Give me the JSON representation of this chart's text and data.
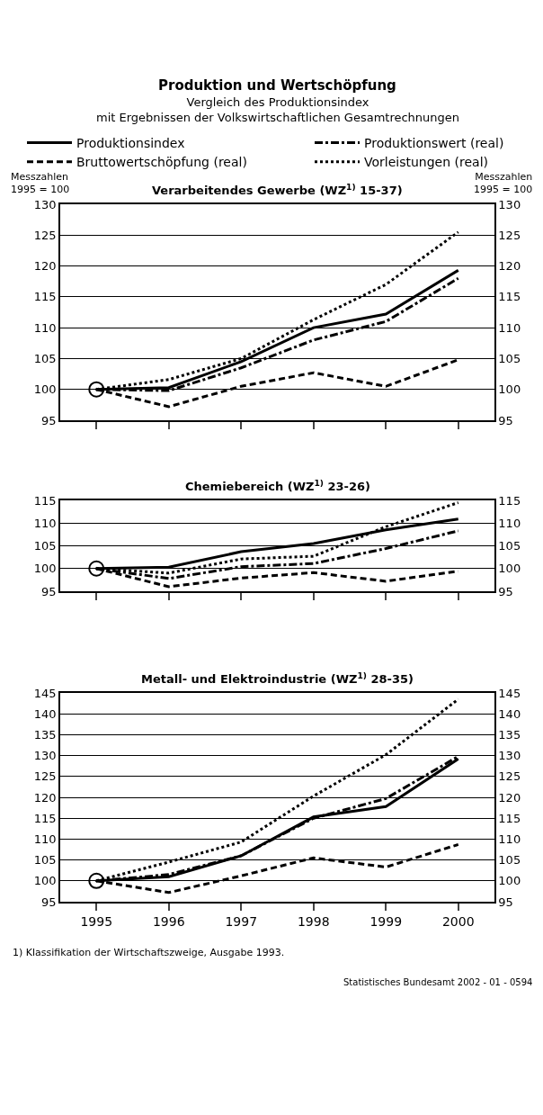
{
  "chart_data": [
    {
      "type": "other",
      "title": "Produktion und Wertschöpfung",
      "subtitle": "Vergleich des Produktionsindex\nmit Ergebnissen der Volkswirtschaftlichen Gesamtrechnungen"
    },
    {
      "type": "line",
      "title": "Verarbeitendes Gewerbe (WZ$^{1)}$ 15-37)",
      "ylabel": "Messzahlen\n1995 = 100",
      "y2label": "Messzahlen\n1995 = 100",
      "categories": [
        null,
        null,
        null,
        null,
        null,
        null
      ],
      "ylim": [
        95,
        130
      ],
      "yticks": [
        95,
        100,
        105,
        110,
        115,
        120,
        125,
        130
      ],
      "y2lim": [
        95,
        130
      ],
      "y2ticks": [
        95,
        100,
        105,
        110,
        115,
        120,
        125,
        130
      ],
      "grid": "y",
      "legend": "top",
      "series": [
        {
          "name": "Produktionsindex",
          "color": "#000000",
          "line_style": "solid",
          "values": [
            100,
            100.3,
            104.5,
            110,
            112.2,
            119.3
          ]
        },
        {
          "name": "Produktionswert (real)",
          "color": "#000000",
          "line_style": "dashdot",
          "values": [
            100,
            99.8,
            103.5,
            108,
            111,
            118
          ]
        },
        {
          "name": "Bruttowertschöpfung (real)",
          "color": "#000000",
          "line_style": "dashed",
          "values": [
            100,
            97.2,
            100.5,
            102.7,
            100.5,
            104.8
          ]
        },
        {
          "name": "Vorleistungen (real)",
          "color": "#000000",
          "line_style": "dotted",
          "values": [
            100,
            101.6,
            105,
            111.3,
            117,
            125.5
          ]
        },
        {
          "type": "scatter",
          "color": "#000000",
          "marker": "circle",
          "values": [
            100,
            null,
            null,
            null,
            null,
            null
          ]
        }
      ]
    },
    {
      "type": "line",
      "title": "Chemiebereich (WZ$^{1)}$ 23-26)",
      "categories": [
        null,
        null,
        null,
        null,
        null,
        null
      ],
      "ylim": [
        95,
        115
      ],
      "yticks": [
        95,
        100,
        105,
        110,
        115
      ],
      "y2lim": [
        95,
        115
      ],
      "y2ticks": [
        95,
        100,
        105,
        110,
        115
      ],
      "grid": "y",
      "series": [
        {
          "color": "#000000",
          "line_style": "solid",
          "values": [
            100,
            100.3,
            103.7,
            105.5,
            108.5,
            110.9
          ]
        },
        {
          "color": "#000000",
          "line_style": "dashdot",
          "values": [
            100,
            97.8,
            100.4,
            101.1,
            104.4,
            108.3
          ]
        },
        {
          "color": "#000000",
          "line_style": "dashed",
          "values": [
            100,
            96,
            97.9,
            99.1,
            97.2,
            99.4
          ]
        },
        {
          "color": "#000000",
          "line_style": "dotted",
          "values": [
            100,
            99,
            102.1,
            102.7,
            109.2,
            114.5
          ]
        },
        {
          "type": "scatter",
          "color": "#000000",
          "marker": "circle",
          "values": [
            100,
            null,
            null,
            null,
            null,
            null
          ]
        }
      ]
    },
    {
      "type": "line",
      "title": "Metall- und Elektroindustrie (WZ$^{1)}$ 28-35)",
      "categories": [
        "1995",
        "1996",
        "1997",
        "1998",
        "1999",
        "2000"
      ],
      "ylim": [
        95,
        145
      ],
      "yticks": [
        95,
        100,
        105,
        110,
        115,
        120,
        125,
        130,
        135,
        140,
        145
      ],
      "y2lim": [
        95,
        145
      ],
      "y2ticks": [
        95,
        100,
        105,
        110,
        115,
        120,
        125,
        130,
        135,
        140,
        145
      ],
      "grid": "y",
      "annotations": [
        "1) Klassifikation der Wirtschaftszweige, Ausgabe 1993.",
        "Statistisches Bundesamt 2002 - 01 - 0594"
      ],
      "series": [
        {
          "color": "#000000",
          "line_style": "solid",
          "values": [
            100,
            101,
            106,
            115.3,
            117.8,
            129.2
          ]
        },
        {
          "color": "#000000",
          "line_style": "dashdot",
          "values": [
            100,
            101.5,
            106,
            115,
            119.7,
            129.8
          ]
        },
        {
          "color": "#000000",
          "line_style": "dashed",
          "values": [
            100,
            97.2,
            101.2,
            105.5,
            103.3,
            108.7
          ]
        },
        {
          "color": "#000000",
          "line_style": "dotted",
          "values": [
            100,
            104.5,
            109.3,
            120.3,
            130.2,
            143.5
          ]
        },
        {
          "type": "scatter",
          "color": "#000000",
          "marker": "circle",
          "values": [
            100,
            null,
            null,
            null,
            null,
            null
          ]
        }
      ]
    }
  ]
}
